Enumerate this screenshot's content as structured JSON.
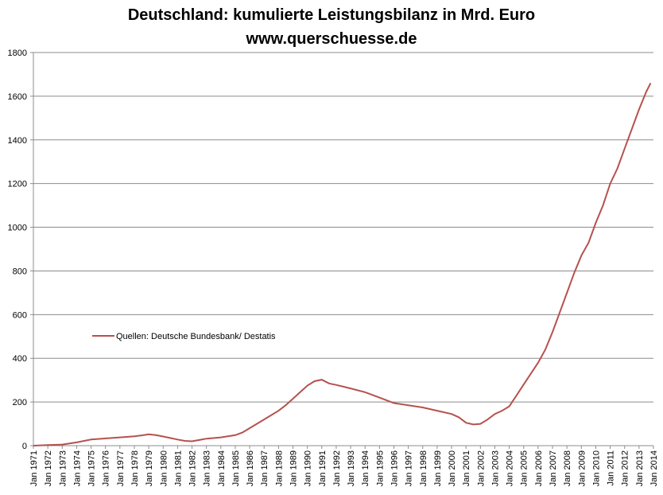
{
  "chart_data": {
    "type": "line",
    "title": "Deutschland: kumulierte Leistungsbilanz in Mrd. Euro",
    "subtitle": "www.querschuesse.de",
    "xlabel": "",
    "ylabel": "",
    "ylim": [
      0,
      1800
    ],
    "yticks": [
      0,
      200,
      400,
      600,
      800,
      1000,
      1200,
      1400,
      1600,
      1800
    ],
    "xlim": [
      1971,
      2014
    ],
    "xticks": [
      "Jan 1971",
      "Jan 1972",
      "Jan 1973",
      "Jan 1974",
      "Jan 1975",
      "Jan 1976",
      "Jan 1977",
      "Jan 1978",
      "Jan 1979",
      "Jan 1980",
      "Jan 1981",
      "Jan 1982",
      "Jan 1983",
      "Jan 1984",
      "Jan 1985",
      "Jan 1986",
      "Jan 1987",
      "Jan 1988",
      "Jan 1989",
      "Jan 1990",
      "Jan 1991",
      "Jan 1992",
      "Jan 1993",
      "Jan 1994",
      "Jan 1995",
      "Jan 1996",
      "Jan 1997",
      "Jan 1998",
      "Jan 1999",
      "Jan 2000",
      "Jan 2001",
      "Jan 2002",
      "Jan 2003",
      "Jan 2004",
      "Jan 2005",
      "Jan 2006",
      "Jan 2007",
      "Jan 2008",
      "Jan 2009",
      "Jan 2010",
      "Jan 2011",
      "Jan 2012",
      "Jan 2013",
      "Jan 2014"
    ],
    "grid": true,
    "legend_position": "left-middle",
    "series": [
      {
        "name": "Quellen: Deutsche Bundesbank/ Destatis",
        "color": "#b5524e",
        "x": [
          1971.0,
          1972.0,
          1973.0,
          1974.0,
          1975.0,
          1976.0,
          1977.0,
          1978.0,
          1978.5,
          1979.0,
          1979.5,
          1980.0,
          1980.5,
          1981.0,
          1981.5,
          1982.0,
          1983.0,
          1984.0,
          1985.0,
          1985.5,
          1986.0,
          1987.0,
          1988.0,
          1988.5,
          1989.0,
          1989.5,
          1990.0,
          1990.5,
          1991.0,
          1991.5,
          1992.0,
          1992.5,
          1993.0,
          1994.0,
          1995.0,
          1996.0,
          1997.0,
          1998.0,
          1999.0,
          2000.0,
          2000.5,
          2001.0,
          2001.5,
          2002.0,
          2002.5,
          2003.0,
          2003.5,
          2004.0,
          2004.5,
          2005.0,
          2005.5,
          2006.0,
          2006.5,
          2007.0,
          2007.5,
          2008.0,
          2008.5,
          2009.0,
          2009.5,
          2010.0,
          2010.5,
          2011.0,
          2011.5,
          2012.0,
          2012.5,
          2013.0,
          2013.5,
          2013.8
        ],
        "values": [
          0,
          3,
          5,
          15,
          28,
          33,
          38,
          43,
          47,
          52,
          48,
          42,
          35,
          28,
          22,
          20,
          32,
          38,
          48,
          60,
          80,
          120,
          160,
          185,
          215,
          245,
          275,
          295,
          302,
          285,
          278,
          270,
          262,
          245,
          220,
          195,
          185,
          175,
          160,
          145,
          130,
          105,
          97,
          100,
          120,
          145,
          160,
          180,
          230,
          280,
          330,
          380,
          440,
          520,
          610,
          700,
          790,
          870,
          930,
          1020,
          1100,
          1200,
          1270,
          1360,
          1450,
          1540,
          1620,
          1660
        ]
      }
    ]
  }
}
